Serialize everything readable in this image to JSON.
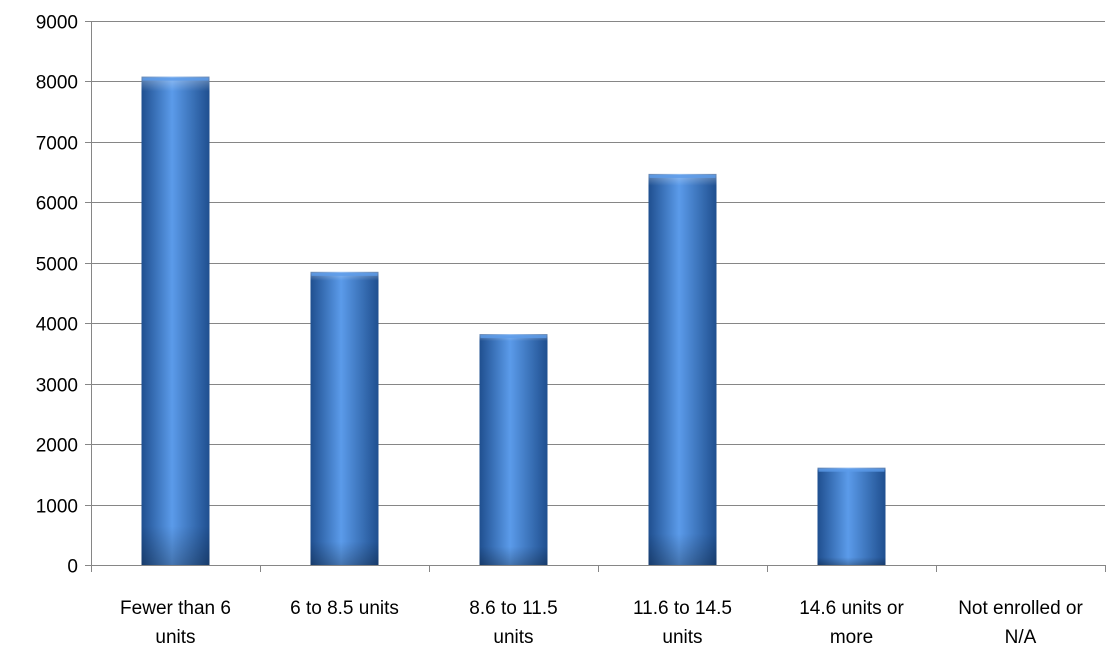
{
  "chart_data": {
    "type": "bar",
    "title": "",
    "xlabel": "",
    "ylabel": "",
    "categories": [
      [
        "Fewer than 6",
        "units"
      ],
      [
        "6 to 8.5 units"
      ],
      [
        "8.6 to 11.5",
        "units"
      ],
      [
        "11.6 to 14.5",
        "units"
      ],
      [
        "14.6 units or",
        "more"
      ],
      [
        "Not enrolled or",
        "N/A"
      ]
    ],
    "values": [
      8080,
      4850,
      3820,
      6470,
      1610,
      0
    ],
    "ylim": [
      0,
      9000
    ],
    "yticks": [
      0,
      1000,
      2000,
      3000,
      4000,
      5000,
      6000,
      7000,
      8000,
      9000
    ],
    "grid": true,
    "legend": "none",
    "colors": {
      "bar_light": "#5b9bea",
      "bar_mid": "#3f7fd0",
      "bar_dark": "#1f4f8f",
      "grid": "#868686",
      "axis": "#868686"
    }
  }
}
